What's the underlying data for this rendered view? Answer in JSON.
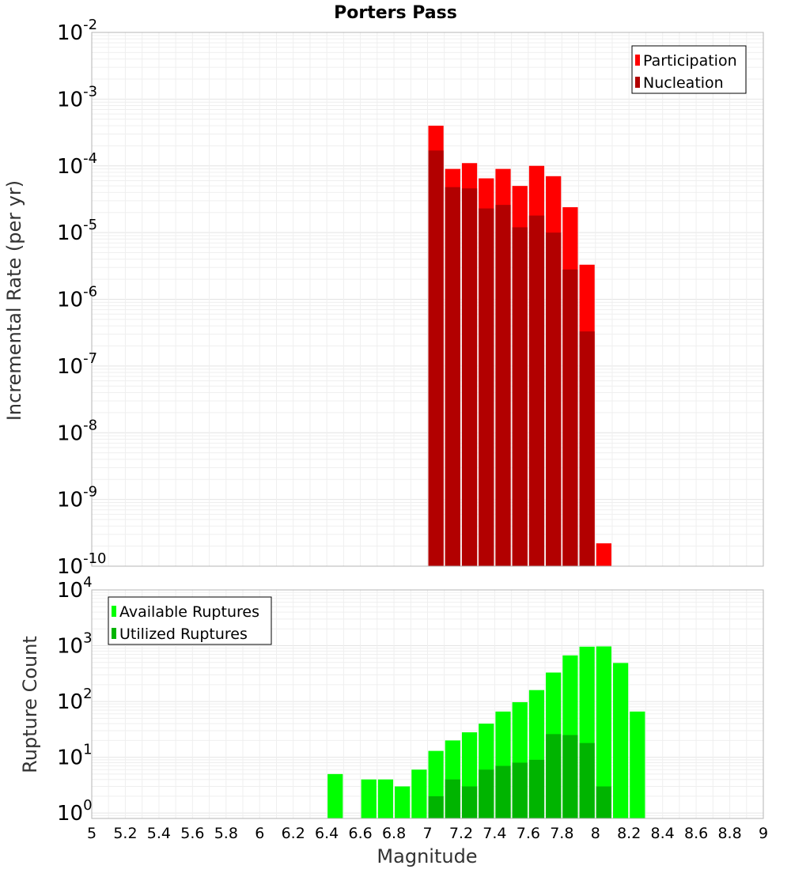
{
  "chart_data": [
    {
      "type": "bar",
      "title": "Porters Pass",
      "ylabel": "Incremental Rate (per yr)",
      "xlabel": "",
      "yscale": "log",
      "ylim": [
        1e-10,
        0.01
      ],
      "xlim": [
        5,
        9
      ],
      "ytick_exponents": [
        -10,
        -9,
        -8,
        -7,
        -6,
        -5,
        -4,
        -3,
        -2
      ],
      "grid": true,
      "legend_position": "top-right",
      "bar_width": 0.1,
      "series": [
        {
          "name": "Participation",
          "color": "#ff0000",
          "x": [
            7.05,
            7.15,
            7.25,
            7.35,
            7.45,
            7.55,
            7.65,
            7.75,
            7.85,
            7.95,
            8.05
          ],
          "values": [
            0.0004,
            9e-05,
            0.00011,
            6.5e-05,
            9e-05,
            5e-05,
            0.0001,
            7e-05,
            2.4e-05,
            3.3e-06,
            2.2e-10
          ]
        },
        {
          "name": "Nucleation",
          "color": "#b20000",
          "x": [
            7.05,
            7.15,
            7.25,
            7.35,
            7.45,
            7.55,
            7.65,
            7.75,
            7.85,
            7.95
          ],
          "values": [
            0.00017,
            4.8e-05,
            4.6e-05,
            2.3e-05,
            2.6e-05,
            1.2e-05,
            1.8e-05,
            1e-05,
            2.8e-06,
            3.3e-07
          ]
        }
      ]
    },
    {
      "type": "bar",
      "title": "",
      "ylabel": "Rupture Count",
      "xlabel": "Magnitude",
      "yscale": "log",
      "ylim": [
        0.8,
        10000
      ],
      "xlim": [
        5,
        9
      ],
      "ytick_exponents": [
        0,
        1,
        2,
        3,
        4
      ],
      "xticks": [
        "5",
        "5.2",
        "5.4",
        "5.6",
        "5.8",
        "6",
        "6.2",
        "6.4",
        "6.6",
        "6.8",
        "7",
        "7.2",
        "7.4",
        "7.6",
        "7.8",
        "8",
        "8.2",
        "8.4",
        "8.6",
        "8.8",
        "9"
      ],
      "grid": true,
      "legend_position": "top-left",
      "bar_width": 0.1,
      "series": [
        {
          "name": "Available Ruptures",
          "color": "#00ff00",
          "x": [
            6.45,
            6.65,
            6.75,
            6.85,
            6.95,
            7.05,
            7.15,
            7.25,
            7.35,
            7.45,
            7.55,
            7.65,
            7.75,
            7.85,
            7.95,
            8.05,
            8.15,
            8.25
          ],
          "values": [
            5,
            4,
            4,
            3,
            6,
            13,
            20,
            28,
            40,
            66,
            97,
            160,
            330,
            670,
            960,
            970,
            490,
            66
          ]
        },
        {
          "name": "Utilized Ruptures",
          "color": "#00b400",
          "x": [
            7.05,
            7.15,
            7.25,
            7.35,
            7.45,
            7.55,
            7.65,
            7.75,
            7.85,
            7.95,
            8.05
          ],
          "values": [
            2,
            4,
            3,
            6,
            7,
            8,
            9,
            26,
            25,
            18,
            3
          ]
        }
      ]
    }
  ]
}
